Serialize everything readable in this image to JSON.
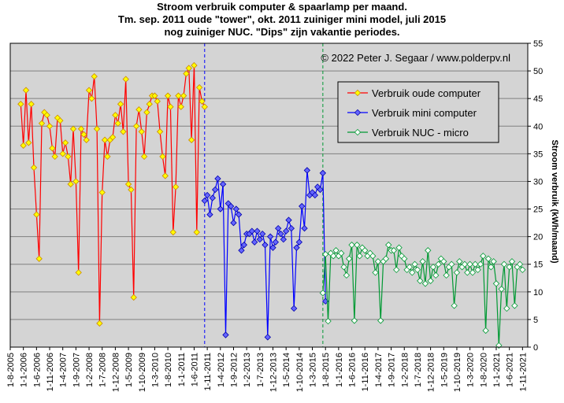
{
  "title": [
    "Stroom verbruik  computer & spaarlamp per maand.",
    "Tm. sep. 2011 oude \"tower\", okt. 2011 zuiniger mini model, juli 2015",
    "nog zuiniger NUC. \"Dips\" zijn vakantie periodes."
  ],
  "chart_data": {
    "type": "line",
    "title": "Stroom verbruik  computer & spaarlamp per maand. Tm. sep. 2011 oude \"tower\", okt. 2011 zuiniger mini model, juli 2015 nog zuiniger NUC. \"Dips\" zijn vakantie periodes.",
    "xlabel": "",
    "ylabel": "Stroom verbruik (kWh/maand)",
    "ylim": [
      0,
      55
    ],
    "yticks": [
      0,
      5,
      10,
      15,
      20,
      25,
      30,
      35,
      40,
      45,
      50,
      55
    ],
    "xlim": [
      "2005-08",
      "2022-01"
    ],
    "xticks": [
      "1-8-2005",
      "1-1-2006",
      "1-6-2006",
      "1-11-2006",
      "1-4-2007",
      "1-9-2007",
      "1-2-2008",
      "1-7-2008",
      "1-12-2008",
      "1-5-2009",
      "1-10-2009",
      "1-3-2010",
      "1-8-2010",
      "1-1-2011",
      "1-6-2011",
      "1-11-2011",
      "1-4-2012",
      "1-9-2012",
      "1-2-2013",
      "1-7-2013",
      "1-12-2013",
      "1-5-2014",
      "1-10-2014",
      "1-3-2015",
      "1-8-2015",
      "1-1-2016",
      "1-6-2016",
      "1-11-2016",
      "1-4-2017",
      "1-9-2017",
      "1-2-2018",
      "1-7-2018",
      "1-12-2018",
      "1-5-2019",
      "1-10-2019",
      "1-3-2020",
      "1-8-2020",
      "1-1-2021",
      "1-6-2021",
      "1-11-2021"
    ],
    "annotation": "© 2022 Peter J. Segaar / www.polderpv.nl",
    "grid": true,
    "legend_position": "upper-center-right",
    "vlines": [
      {
        "x": "2011-10",
        "color": "#0000ff"
      },
      {
        "x": "2015-07",
        "color": "#009933"
      }
    ],
    "series": [
      {
        "name": "Verbruik oude computer",
        "color": "#ff0000",
        "marker_fill": "#ffff00",
        "marker_edge": "#cc8800",
        "start": "2005-12",
        "values": [
          44,
          36.5,
          46.5,
          37,
          44,
          32.5,
          24,
          16,
          40.5,
          42.5,
          42,
          40,
          36,
          34.5,
          41.5,
          41,
          35,
          37,
          34.5,
          29.5,
          39.5,
          30,
          13.5,
          39.5,
          38.5,
          37.5,
          46.5,
          45,
          49,
          39.5,
          4.3,
          28,
          37.5,
          34.5,
          37.5,
          38,
          42,
          40.5,
          44,
          39,
          48.5,
          29.5,
          28.5,
          9,
          40,
          43,
          39,
          34.5,
          42.5,
          44,
          45.5,
          45.5,
          44.5,
          39,
          34.5,
          31,
          45.5,
          43.5,
          20.8,
          29,
          45.5,
          43.5,
          45.5,
          49.5,
          50.5,
          37.5,
          51,
          20.8,
          47,
          44.5,
          43.5
        ]
      },
      {
        "name": "Verbruik mini computer",
        "color": "#0000ff",
        "marker_fill": "#6666ff",
        "marker_edge": "#0000aa",
        "start": "2011-10",
        "values": [
          26.5,
          27.5,
          24,
          27,
          28.5,
          30.5,
          25,
          29.5,
          2.2,
          26,
          25.5,
          22.5,
          25,
          24,
          17.5,
          18.5,
          20.5,
          20.5,
          21,
          19,
          21,
          19.5,
          20.5,
          18.5,
          1.8,
          20,
          18,
          19,
          21.5,
          20.5,
          19.5,
          21,
          23,
          21.5,
          7,
          18,
          19,
          25.5,
          21.5,
          32,
          27.5,
          28,
          27.5,
          29,
          28.5,
          31.5,
          8.3
        ]
      },
      {
        "name": "Verbruik NUC - micro",
        "color": "#009933",
        "marker_fill": "#ffffff",
        "marker_edge": "#009933",
        "start": "2015-07",
        "values": [
          9.8,
          16.8,
          4.7,
          17,
          16.5,
          17.5,
          16.5,
          17,
          14.5,
          13,
          16,
          18.5,
          4.8,
          18.5,
          16.5,
          18,
          17.5,
          16.5,
          17,
          16.5,
          13.5,
          15.5,
          4.8,
          15.5,
          16,
          18.5,
          17.5,
          17.5,
          14,
          18,
          16.5,
          16,
          14,
          14.5,
          13.5,
          15,
          14,
          12,
          15.5,
          11.5,
          17.5,
          12,
          14.5,
          13,
          15,
          16,
          15.5,
          13,
          14.5,
          15,
          7.5,
          13.5,
          15.5,
          14.5,
          15,
          13.5,
          15,
          13.5,
          15,
          14,
          15,
          16.5,
          3,
          16,
          14.5,
          15.5,
          11.5,
          0.3,
          10.5,
          15,
          7,
          14.5,
          15.5,
          7.5,
          14.5,
          15,
          14
        ]
      }
    ]
  },
  "watermark": "© 2022 Peter J. Segaar / www.polderpv.nl",
  "legend": {
    "items": [
      {
        "label": "Verbruik oude computer"
      },
      {
        "label": "Verbruik mini computer"
      },
      {
        "label": "Verbruik NUC - micro"
      }
    ]
  },
  "colors": {
    "plot_background": "#d4d4d4",
    "grid": "#808080",
    "legend_background": "#d4d4d4"
  }
}
